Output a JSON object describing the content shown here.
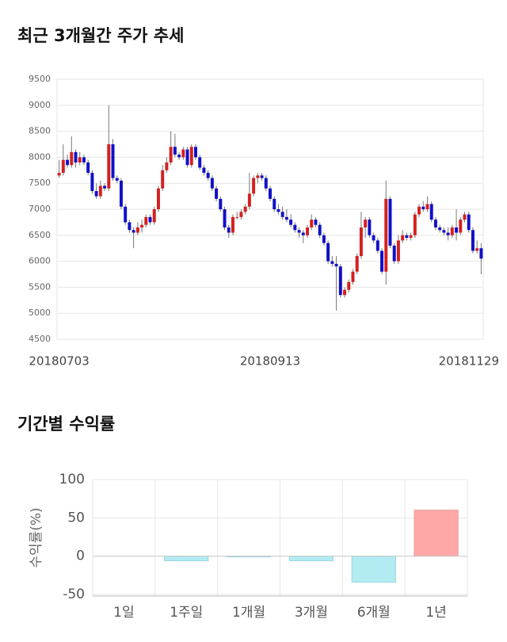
{
  "chart_data": [
    {
      "type": "candlestick",
      "title": "최근 3개월간 주가 추세",
      "categories": [
        "20180703",
        null,
        null,
        null,
        null,
        null,
        null,
        null,
        null,
        null,
        null,
        null,
        null,
        null,
        null,
        null,
        null,
        null,
        null,
        null,
        null,
        null,
        null,
        null,
        null,
        null,
        null,
        null,
        null,
        null,
        null,
        null,
        null,
        null,
        null,
        null,
        null,
        null,
        null,
        null,
        null,
        null,
        null,
        null,
        null,
        null,
        null,
        null,
        null,
        null,
        null,
        "20180913",
        null,
        null,
        null,
        null,
        null,
        null,
        null,
        null,
        null,
        null,
        null,
        null,
        null,
        null,
        null,
        null,
        null,
        null,
        null,
        null,
        null,
        null,
        null,
        null,
        null,
        null,
        null,
        null,
        null,
        null,
        null,
        null,
        null,
        null,
        null,
        null,
        null,
        null,
        null,
        null,
        null,
        null,
        null,
        null,
        null,
        null,
        null,
        null,
        null,
        null,
        "20181129"
      ],
      "ohlc": [
        [
          7650,
          7950,
          7600,
          7700
        ],
        [
          7700,
          8250,
          7650,
          7950
        ],
        [
          7950,
          8050,
          7800,
          7850
        ],
        [
          7850,
          8400,
          7800,
          8100
        ],
        [
          8100,
          8150,
          7800,
          7900
        ],
        [
          7900,
          8100,
          7850,
          8000
        ],
        [
          8000,
          8050,
          7850,
          7900
        ],
        [
          7900,
          7950,
          7650,
          7700
        ],
        [
          7700,
          7750,
          7300,
          7350
        ],
        [
          7350,
          7500,
          7200,
          7250
        ],
        [
          7250,
          7550,
          7200,
          7450
        ],
        [
          7450,
          7500,
          7350,
          7400
        ],
        [
          7400,
          9000,
          7350,
          8250
        ],
        [
          8250,
          8350,
          7550,
          7600
        ],
        [
          7600,
          7650,
          7500,
          7550
        ],
        [
          7550,
          7600,
          7000,
          7050
        ],
        [
          7050,
          7100,
          6700,
          6750
        ],
        [
          6750,
          6800,
          6550,
          6600
        ],
        [
          6600,
          6650,
          6250,
          6550
        ],
        [
          6550,
          6750,
          6500,
          6650
        ],
        [
          6650,
          6800,
          6550,
          6700
        ],
        [
          6700,
          6900,
          6650,
          6850
        ],
        [
          6850,
          6900,
          6700,
          6750
        ],
        [
          6750,
          7050,
          6700,
          7000
        ],
        [
          7000,
          7450,
          6950,
          7400
        ],
        [
          7400,
          7850,
          7350,
          7750
        ],
        [
          7750,
          8000,
          7700,
          7900
        ],
        [
          7900,
          8500,
          7850,
          8200
        ],
        [
          8200,
          8450,
          8000,
          8050
        ],
        [
          8050,
          8100,
          7950,
          8000
        ],
        [
          8000,
          8200,
          7950,
          8150
        ],
        [
          8150,
          8200,
          7800,
          7850
        ],
        [
          7850,
          8250,
          7800,
          8200
        ],
        [
          8200,
          8250,
          7950,
          8000
        ],
        [
          8000,
          8050,
          7750,
          7800
        ],
        [
          7800,
          7850,
          7650,
          7700
        ],
        [
          7700,
          7750,
          7550,
          7600
        ],
        [
          7600,
          7650,
          7350,
          7400
        ],
        [
          7400,
          7450,
          7150,
          7200
        ],
        [
          7200,
          7250,
          6950,
          7000
        ],
        [
          7000,
          7050,
          6600,
          6650
        ],
        [
          6650,
          6700,
          6450,
          6550
        ],
        [
          6550,
          6900,
          6500,
          6850
        ],
        [
          6850,
          6950,
          6800,
          6850
        ],
        [
          6850,
          7000,
          6800,
          6950
        ],
        [
          6950,
          7100,
          6900,
          7050
        ],
        [
          7050,
          7700,
          7000,
          7300
        ],
        [
          7300,
          7650,
          7250,
          7600
        ],
        [
          7600,
          7700,
          7500,
          7650
        ],
        [
          7650,
          7700,
          7550,
          7600
        ],
        [
          7600,
          7650,
          7350,
          7400
        ],
        [
          7400,
          7450,
          7150,
          7200
        ],
        [
          7200,
          7250,
          6950,
          7000
        ],
        [
          7000,
          7100,
          6900,
          6950
        ],
        [
          6950,
          7050,
          6800,
          6850
        ],
        [
          6850,
          7000,
          6750,
          6800
        ],
        [
          6800,
          6900,
          6650,
          6700
        ],
        [
          6700,
          6750,
          6550,
          6600
        ],
        [
          6600,
          6650,
          6450,
          6550
        ],
        [
          6550,
          6600,
          6350,
          6500
        ],
        [
          6500,
          6700,
          6450,
          6650
        ],
        [
          6650,
          6900,
          6600,
          6800
        ],
        [
          6800,
          6850,
          6650,
          6700
        ],
        [
          6700,
          6750,
          6450,
          6500
        ],
        [
          6500,
          6550,
          6300,
          6350
        ],
        [
          6350,
          6400,
          5950,
          6000
        ],
        [
          6000,
          6100,
          5900,
          5950
        ],
        [
          5950,
          6100,
          5050,
          5900
        ],
        [
          5900,
          5950,
          5300,
          5350
        ],
        [
          5350,
          5500,
          5300,
          5450
        ],
        [
          5450,
          5650,
          5400,
          5600
        ],
        [
          5600,
          5850,
          5550,
          5800
        ],
        [
          5800,
          6150,
          5750,
          6100
        ],
        [
          6100,
          6950,
          6050,
          6650
        ],
        [
          6650,
          6850,
          6450,
          6800
        ],
        [
          6800,
          6850,
          6450,
          6500
        ],
        [
          6500,
          6550,
          6350,
          6400
        ],
        [
          6400,
          6450,
          6150,
          6200
        ],
        [
          6200,
          6250,
          5750,
          5800
        ],
        [
          5800,
          7550,
          5550,
          7200
        ],
        [
          7200,
          7250,
          6250,
          6300
        ],
        [
          6300,
          6350,
          5950,
          6000
        ],
        [
          6000,
          6500,
          5950,
          6400
        ],
        [
          6400,
          6600,
          6350,
          6500
        ],
        [
          6500,
          6550,
          6400,
          6450
        ],
        [
          6450,
          6550,
          6400,
          6500
        ],
        [
          6500,
          6950,
          6450,
          6900
        ],
        [
          6900,
          7100,
          6850,
          7050
        ],
        [
          7050,
          7150,
          6950,
          7000
        ],
        [
          7000,
          7250,
          6950,
          7100
        ],
        [
          7100,
          7150,
          6750,
          6800
        ],
        [
          6800,
          6850,
          6600,
          6650
        ],
        [
          6650,
          6700,
          6550,
          6600
        ],
        [
          6600,
          6650,
          6500,
          6550
        ],
        [
          6550,
          6650,
          6400,
          6500
        ],
        [
          6500,
          6700,
          6450,
          6650
        ],
        [
          6650,
          7000,
          6400,
          6550
        ],
        [
          6550,
          6850,
          6500,
          6800
        ],
        [
          6800,
          6950,
          6750,
          6900
        ],
        [
          6900,
          6950,
          6550,
          6600
        ],
        [
          6600,
          6650,
          6150,
          6200
        ],
        [
          6200,
          6400,
          6150,
          6250
        ],
        [
          6250,
          6350,
          5750,
          6050
        ]
      ],
      "up_color": "#d42020",
      "down_color": "#1010c8",
      "ylim": [
        4500,
        9500
      ],
      "yticks": [
        4500,
        5000,
        5500,
        6000,
        6500,
        7000,
        7500,
        8000,
        8500,
        9000,
        9500
      ],
      "grid": true
    },
    {
      "type": "bar",
      "title": "기간별 수익률",
      "y_label": "수익률(%)",
      "categories": [
        "1일",
        "1주일",
        "1개월",
        "3개월",
        "6개월",
        "1년"
      ],
      "values": [
        0,
        -6,
        -1,
        -6,
        -34,
        60
      ],
      "colors": [
        "#b2ebf2",
        "#b2ebf2",
        "#b2ebf2",
        "#b2ebf2",
        "#b2ebf2",
        "#ffa8a8"
      ],
      "ylim": [
        -52,
        100
      ],
      "yticks": [
        100,
        50,
        0,
        -50
      ],
      "grid": true
    }
  ]
}
